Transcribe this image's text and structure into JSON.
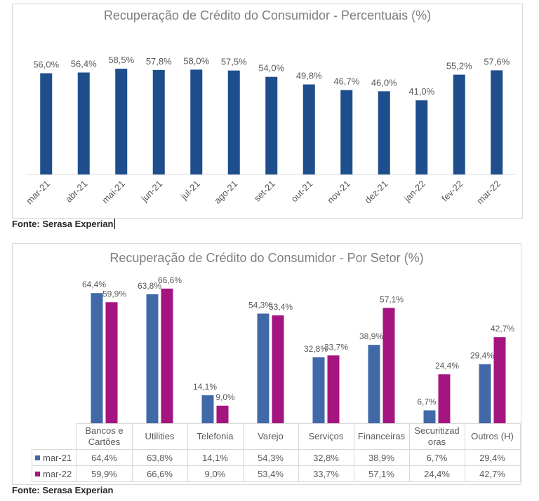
{
  "chart1": {
    "title": "Recuperação de Crédito do Consumidor - Percentuais (%)",
    "source": "Fonte: Serasa Experian"
  },
  "chart2": {
    "title": "Recuperação de Crédito do Consumidor - Por Setor (%)",
    "source": "Fonte: Serasa Experian"
  },
  "colors": {
    "bar1": "#1f4e8c",
    "mar21": "#4169a8",
    "mar22": "#a5157f"
  },
  "chart_data": [
    {
      "type": "bar",
      "title": "Recuperação de Crédito do Consumidor - Percentuais (%)",
      "categories": [
        "mar-21",
        "abr-21",
        "mai-21",
        "jun-21",
        "jul-21",
        "ago-21",
        "set-21",
        "out-21",
        "nov-21",
        "dez-21",
        "jan-22",
        "fev-22",
        "mar-22"
      ],
      "values": [
        56.0,
        56.4,
        58.5,
        57.8,
        58.0,
        57.5,
        54.0,
        49.8,
        46.7,
        46.0,
        41.0,
        55.2,
        57.6
      ],
      "labels": [
        "56,0%",
        "56,4%",
        "58,5%",
        "57,8%",
        "58,0%",
        "57,5%",
        "54,0%",
        "49,8%",
        "46,7%",
        "46,0%",
        "41,0%",
        "55,2%",
        "57,6%"
      ],
      "ylim": [
        0,
        100
      ],
      "grid": false,
      "legend": "none"
    },
    {
      "type": "bar",
      "title": "Recuperação de Crédito do Consumidor - Por Setor (%)",
      "categories": [
        "Bancos e Cartões",
        "Utilities",
        "Telefonia",
        "Varejo",
        "Serviços",
        "Financeiras",
        "Securitizadoras",
        "Outros (H)"
      ],
      "category_lines": [
        [
          "Bancos e",
          "Cartões"
        ],
        [
          "Utilities"
        ],
        [
          "Telefonia"
        ],
        [
          "Varejo"
        ],
        [
          "Serviços"
        ],
        [
          "Financeiras"
        ],
        [
          "Securitizad",
          "oras"
        ],
        [
          "Outros (H)"
        ]
      ],
      "series": [
        {
          "name": "mar-21",
          "values": [
            64.4,
            63.8,
            14.1,
            54.3,
            32.8,
            38.9,
            6.7,
            29.4
          ],
          "labels": [
            "64,4%",
            "63,8%",
            "14,1%",
            "54,3%",
            "32,8%",
            "38,9%",
            "6,7%",
            "29,4%"
          ]
        },
        {
          "name": "mar-22",
          "values": [
            59.9,
            66.6,
            9.0,
            53.4,
            33.7,
            57.1,
            24.4,
            42.7
          ],
          "labels": [
            "59,9%",
            "66,6%",
            "9,0%",
            "53,4%",
            "33,7%",
            "57,1%",
            "24,4%",
            "42,7%"
          ]
        }
      ],
      "ylim": [
        0,
        70
      ],
      "grid": false,
      "legend": "data table"
    }
  ]
}
